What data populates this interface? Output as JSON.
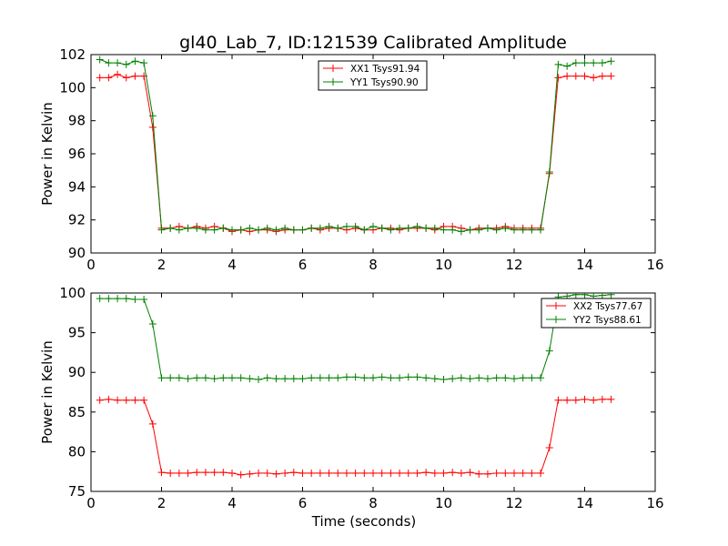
{
  "title": "gl40_Lab_7, ID:121539 Calibrated Amplitude",
  "chart_data": [
    {
      "type": "line",
      "xlabel": "",
      "ylabel": "Power in Kelvin",
      "xlim": [
        0,
        16
      ],
      "ylim": [
        90,
        102
      ],
      "xticks": [
        "0",
        "2",
        "4",
        "6",
        "8",
        "10",
        "12",
        "14",
        "16"
      ],
      "yticks": [
        "90",
        "92",
        "94",
        "96",
        "98",
        "100",
        "102"
      ],
      "x": [
        0.25,
        0.5,
        0.75,
        1.0,
        1.25,
        1.5,
        1.75,
        2.0,
        2.25,
        2.5,
        2.75,
        3.0,
        3.25,
        3.5,
        3.75,
        4.0,
        4.25,
        4.5,
        4.75,
        5.0,
        5.25,
        5.5,
        5.75,
        6.0,
        6.25,
        6.5,
        6.75,
        7.0,
        7.25,
        7.5,
        7.75,
        8.0,
        8.25,
        8.5,
        8.75,
        9.0,
        9.25,
        9.5,
        9.75,
        10.0,
        10.25,
        10.5,
        10.75,
        11.0,
        11.25,
        11.5,
        11.75,
        12.0,
        12.25,
        12.5,
        12.75,
        13.0,
        13.25,
        13.5,
        13.75,
        14.0,
        14.25,
        14.5,
        14.75
      ],
      "legend_position": "upper center",
      "grid": false,
      "series": [
        {
          "name": "XX1 Tsys91.94",
          "color": "#ff0000",
          "values": [
            100.6,
            100.6,
            100.8,
            100.6,
            100.7,
            100.7,
            97.6,
            91.5,
            91.5,
            91.6,
            91.5,
            91.6,
            91.5,
            91.6,
            91.5,
            91.3,
            91.4,
            91.3,
            91.4,
            91.4,
            91.3,
            91.4,
            91.4,
            91.4,
            91.5,
            91.4,
            91.5,
            91.5,
            91.4,
            91.5,
            91.4,
            91.4,
            91.5,
            91.5,
            91.4,
            91.5,
            91.5,
            91.5,
            91.4,
            91.6,
            91.6,
            91.5,
            91.4,
            91.5,
            91.5,
            91.5,
            91.6,
            91.5,
            91.5,
            91.5,
            91.5,
            94.8,
            100.6,
            100.7,
            100.7,
            100.7,
            100.6,
            100.7,
            100.7
          ]
        },
        {
          "name": "YY1 Tsys90.90",
          "color": "#008000",
          "values": [
            101.7,
            101.5,
            101.5,
            101.4,
            101.6,
            101.5,
            98.3,
            91.4,
            91.5,
            91.4,
            91.5,
            91.5,
            91.4,
            91.4,
            91.5,
            91.4,
            91.4,
            91.5,
            91.4,
            91.5,
            91.4,
            91.5,
            91.4,
            91.4,
            91.5,
            91.5,
            91.6,
            91.5,
            91.6,
            91.6,
            91.4,
            91.6,
            91.5,
            91.4,
            91.5,
            91.5,
            91.6,
            91.5,
            91.5,
            91.4,
            91.4,
            91.3,
            91.4,
            91.4,
            91.5,
            91.4,
            91.5,
            91.4,
            91.4,
            91.4,
            91.4,
            94.9,
            101.4,
            101.3,
            101.5,
            101.5,
            101.5,
            101.5,
            101.6
          ]
        }
      ]
    },
    {
      "type": "line",
      "xlabel": "Time (seconds)",
      "ylabel": "Power in Kelvin",
      "xlim": [
        0,
        16
      ],
      "ylim": [
        75,
        100
      ],
      "xticks": [
        "0",
        "2",
        "4",
        "6",
        "8",
        "10",
        "12",
        "14",
        "16"
      ],
      "yticks": [
        "75",
        "80",
        "85",
        "90",
        "95",
        "100"
      ],
      "x": [
        0.25,
        0.5,
        0.75,
        1.0,
        1.25,
        1.5,
        1.75,
        2.0,
        2.25,
        2.5,
        2.75,
        3.0,
        3.25,
        3.5,
        3.75,
        4.0,
        4.25,
        4.5,
        4.75,
        5.0,
        5.25,
        5.5,
        5.75,
        6.0,
        6.25,
        6.5,
        6.75,
        7.0,
        7.25,
        7.5,
        7.75,
        8.0,
        8.25,
        8.5,
        8.75,
        9.0,
        9.25,
        9.5,
        9.75,
        10.0,
        10.25,
        10.5,
        10.75,
        11.0,
        11.25,
        11.5,
        11.75,
        12.0,
        12.25,
        12.5,
        12.75,
        13.0,
        13.25,
        13.5,
        13.75,
        14.0,
        14.25,
        14.5,
        14.75
      ],
      "legend_position": "upper right",
      "grid": false,
      "series": [
        {
          "name": "XX2 Tsys77.67",
          "color": "#ff0000",
          "values": [
            86.5,
            86.6,
            86.5,
            86.5,
            86.5,
            86.5,
            83.5,
            77.4,
            77.3,
            77.3,
            77.3,
            77.4,
            77.4,
            77.4,
            77.4,
            77.3,
            77.1,
            77.2,
            77.3,
            77.3,
            77.2,
            77.3,
            77.4,
            77.3,
            77.3,
            77.3,
            77.3,
            77.3,
            77.3,
            77.3,
            77.3,
            77.3,
            77.3,
            77.3,
            77.3,
            77.3,
            77.3,
            77.4,
            77.3,
            77.3,
            77.4,
            77.3,
            77.4,
            77.2,
            77.2,
            77.3,
            77.3,
            77.3,
            77.3,
            77.3,
            77.3,
            80.5,
            86.5,
            86.5,
            86.5,
            86.6,
            86.5,
            86.6,
            86.6
          ]
        },
        {
          "name": "YY2 Tsys88.61",
          "color": "#008000",
          "values": [
            99.3,
            99.3,
            99.3,
            99.3,
            99.2,
            99.2,
            96.1,
            89.3,
            89.3,
            89.3,
            89.2,
            89.3,
            89.3,
            89.2,
            89.3,
            89.3,
            89.3,
            89.2,
            89.1,
            89.3,
            89.2,
            89.2,
            89.2,
            89.2,
            89.3,
            89.3,
            89.3,
            89.3,
            89.4,
            89.4,
            89.3,
            89.3,
            89.4,
            89.3,
            89.3,
            89.4,
            89.4,
            89.3,
            89.2,
            89.1,
            89.2,
            89.3,
            89.2,
            89.3,
            89.2,
            89.3,
            89.3,
            89.2,
            89.3,
            89.3,
            89.3,
            92.7,
            99.5,
            99.6,
            99.8,
            99.8,
            99.6,
            99.7,
            99.8
          ]
        }
      ]
    }
  ]
}
